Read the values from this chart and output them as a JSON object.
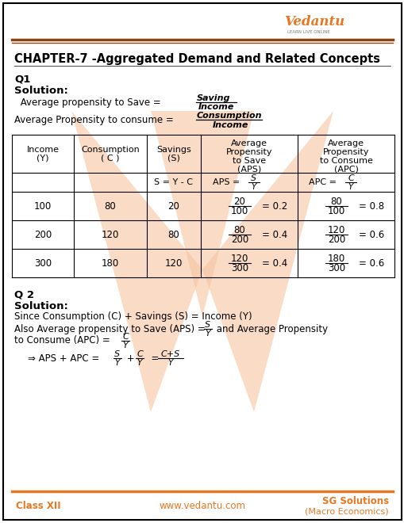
{
  "title": "CHAPTER-7 -Aggregated Demand and Related Concepts",
  "bg_color": "#FFFFFF",
  "watermark_color": "#F5C4A0",
  "header_line_color1": "#8B4513",
  "header_line_color2": "#A0522D",
  "orange_color": "#E87722",
  "text_color": "#000000",
  "footer_left": "Class XII",
  "footer_mid": "www.vedantu.com",
  "footer_right_1": "SG Solutions",
  "footer_right_2": "(Macro Economics)"
}
